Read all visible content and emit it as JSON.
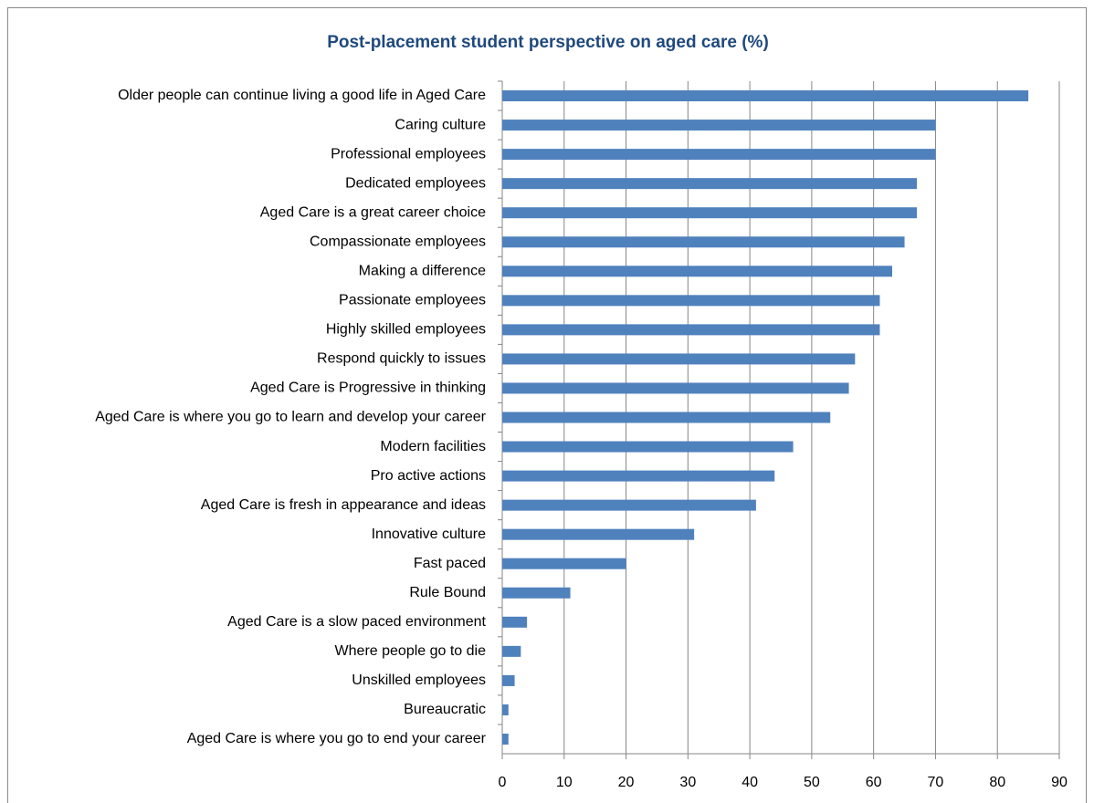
{
  "chart_data": {
    "type": "bar",
    "orientation": "horizontal",
    "title": "Post-placement student perspective on aged care (%)",
    "categories": [
      "Older people can continue living a good life in Aged Care",
      "Caring culture",
      "Professional employees",
      "Dedicated employees",
      "Aged Care is a great career choice",
      "Compassionate employees",
      "Making a difference",
      "Passionate employees",
      "Highly skilled employees",
      "Respond quickly to issues",
      "Aged Care is Progressive in thinking",
      "Aged Care is where you go to learn and develop your career",
      "Modern facilities",
      "Pro active actions",
      "Aged Care is fresh in appearance and ideas",
      "Innovative culture",
      "Fast paced",
      "Rule Bound",
      "Aged Care is a slow paced environment",
      "Where people go to die",
      "Unskilled employees",
      "Bureaucratic",
      "Aged Care is where you go to end your career"
    ],
    "values": [
      85,
      70,
      70,
      67,
      67,
      65,
      63,
      61,
      61,
      57,
      56,
      53,
      47,
      44,
      41,
      31,
      20,
      11,
      4,
      3,
      2,
      1,
      1
    ],
    "color": "#4f81bd",
    "xlim": [
      0,
      90
    ],
    "xticks": [
      0,
      10,
      20,
      30,
      40,
      50,
      60,
      70,
      80,
      90
    ],
    "grid": true
  }
}
